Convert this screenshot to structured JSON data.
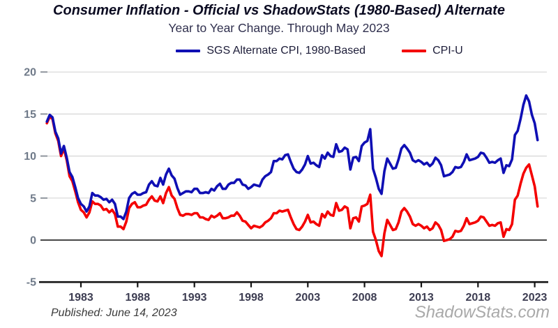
{
  "title": "Consumer Inflation - Official vs ShadowStats (1980-Based) Alternate",
  "subtitle": "Year to Year Change. Through May 2023",
  "legend": {
    "items": [
      {
        "label": "SGS Alternate CPI, 1980-Based",
        "color": "#0f0fb4"
      },
      {
        "label": "CPI-U",
        "color": "#f40000"
      }
    ]
  },
  "footer": {
    "published": "Published: June 14, 2023",
    "watermark": "ShadowStats.com"
  },
  "chart_data": {
    "type": "line",
    "title": "Consumer Inflation - Official vs ShadowStats (1980-Based) Alternate",
    "subtitle": "Year to Year Change. Through May 2023",
    "xlabel": "",
    "ylabel": "",
    "x_start": 1980.0,
    "x_step": 0.25,
    "xlim": [
      1979.6,
      2024.1
    ],
    "ylim": [
      -5,
      20
    ],
    "x_ticks": [
      1983,
      1988,
      1993,
      1998,
      2003,
      2008,
      2013,
      2018,
      2023
    ],
    "y_ticks": [
      -5,
      0,
      5,
      10,
      15,
      20
    ],
    "grid": "horizontal-light",
    "zero_line": true,
    "legend_position": "top",
    "series": [
      {
        "name": "SGS Alternate CPI, 1980-Based",
        "color": "#0f0fb4",
        "values": [
          14.1,
          14.9,
          14.6,
          12.9,
          12.1,
          10.3,
          11.2,
          9.8,
          8.1,
          7.5,
          6.3,
          5.0,
          4.3,
          4.0,
          3.4,
          4.0,
          5.6,
          5.3,
          5.3,
          5.1,
          4.8,
          4.9,
          4.5,
          4.8,
          4.3,
          2.8,
          2.8,
          2.5,
          3.4,
          5.0,
          5.5,
          5.7,
          5.4,
          5.4,
          5.6,
          5.7,
          6.6,
          7.0,
          6.5,
          6.4,
          7.4,
          6.6,
          7.8,
          8.5,
          7.7,
          7.3,
          6.2,
          5.4,
          5.6,
          5.8,
          5.8,
          5.7,
          6.1,
          6.1,
          5.6,
          5.6,
          5.7,
          5.6,
          6.1,
          5.9,
          6.4,
          6.7,
          6.1,
          6.1,
          6.6,
          6.8,
          6.8,
          7.2,
          7.2,
          6.6,
          6.5,
          6.1,
          6.3,
          6.6,
          6.5,
          6.4,
          7.2,
          7.6,
          7.8,
          8.1,
          9.4,
          9.4,
          9.7,
          9.6,
          10.1,
          10.2,
          9.3,
          8.5,
          8.1,
          8.0,
          8.4,
          9.0,
          10.0,
          9.1,
          9.2,
          8.9,
          8.7,
          10.1,
          9.7,
          10.4,
          10.0,
          9.9,
          11.4,
          10.5,
          10.6,
          11.0,
          10.8,
          8.4,
          9.8,
          9.9,
          9.4,
          11.2,
          11.6,
          11.8,
          13.2,
          8.5,
          7.4,
          6.1,
          5.5,
          8.2,
          9.7,
          9.1,
          8.5,
          8.6,
          9.6,
          10.9,
          11.3,
          10.9,
          10.4,
          9.5,
          9.3,
          9.5,
          9.3,
          9.0,
          9.2,
          8.8,
          9.1,
          9.8,
          9.5,
          8.9,
          7.6,
          7.7,
          7.8,
          8.1,
          8.7,
          8.6,
          8.7,
          9.3,
          10.2,
          9.5,
          9.6,
          9.7,
          9.9,
          10.4,
          10.3,
          9.8,
          9.2,
          9.3,
          9.2,
          9.5,
          9.7,
          8.0,
          8.9,
          8.8,
          9.6,
          12.5,
          13.0,
          14.4,
          16.1,
          17.2,
          16.5,
          14.9,
          13.9,
          11.9
        ]
      },
      {
        "name": "CPI-U",
        "color": "#f40000",
        "values": [
          13.9,
          14.7,
          14.4,
          12.7,
          11.8,
          10.0,
          10.9,
          9.5,
          7.6,
          7.0,
          5.8,
          4.5,
          3.6,
          3.3,
          2.7,
          3.3,
          4.6,
          4.3,
          4.3,
          4.1,
          3.6,
          3.7,
          3.3,
          3.6,
          3.1,
          1.6,
          1.6,
          1.3,
          2.2,
          3.8,
          4.3,
          4.5,
          3.9,
          3.9,
          4.1,
          4.2,
          4.8,
          5.2,
          4.7,
          4.6,
          5.2,
          4.4,
          5.6,
          6.3,
          5.3,
          4.9,
          3.8,
          3.0,
          2.9,
          3.1,
          3.1,
          3.0,
          3.2,
          3.2,
          2.7,
          2.7,
          2.5,
          2.4,
          2.9,
          2.7,
          2.9,
          3.2,
          2.6,
          2.6,
          2.7,
          2.9,
          2.9,
          3.3,
          2.9,
          2.3,
          2.2,
          1.8,
          1.4,
          1.7,
          1.6,
          1.5,
          1.7,
          2.1,
          2.3,
          2.6,
          3.2,
          3.2,
          3.5,
          3.4,
          3.5,
          3.6,
          2.7,
          1.9,
          1.3,
          1.2,
          1.6,
          2.2,
          3.0,
          2.1,
          2.2,
          1.9,
          1.7,
          3.1,
          2.7,
          3.4,
          3.0,
          2.9,
          4.4,
          3.5,
          3.6,
          4.0,
          3.8,
          1.4,
          2.6,
          2.7,
          2.2,
          4.0,
          4.1,
          4.3,
          5.4,
          1.0,
          0.0,
          -1.3,
          -1.9,
          0.8,
          2.4,
          1.8,
          1.2,
          1.3,
          2.1,
          3.4,
          3.8,
          3.4,
          2.8,
          1.9,
          1.7,
          1.9,
          1.7,
          1.4,
          1.6,
          1.2,
          1.4,
          2.1,
          1.8,
          1.2,
          -0.1,
          0.0,
          0.1,
          0.4,
          1.1,
          1.0,
          1.1,
          1.7,
          2.6,
          1.9,
          2.0,
          2.1,
          2.3,
          2.8,
          2.7,
          2.2,
          1.7,
          1.8,
          1.7,
          2.0,
          2.1,
          0.4,
          1.3,
          1.2,
          1.9,
          4.8,
          5.3,
          6.7,
          7.9,
          8.6,
          9.0,
          7.7,
          6.4,
          4.0
        ]
      }
    ]
  },
  "style_colors": {
    "gridline": "#d6d6d6",
    "tick_dash": "#8f959d",
    "zero_line": "#474747",
    "axis_line": "#141414",
    "y_label": "#6f7a89",
    "x_label": "#3d3d52"
  }
}
